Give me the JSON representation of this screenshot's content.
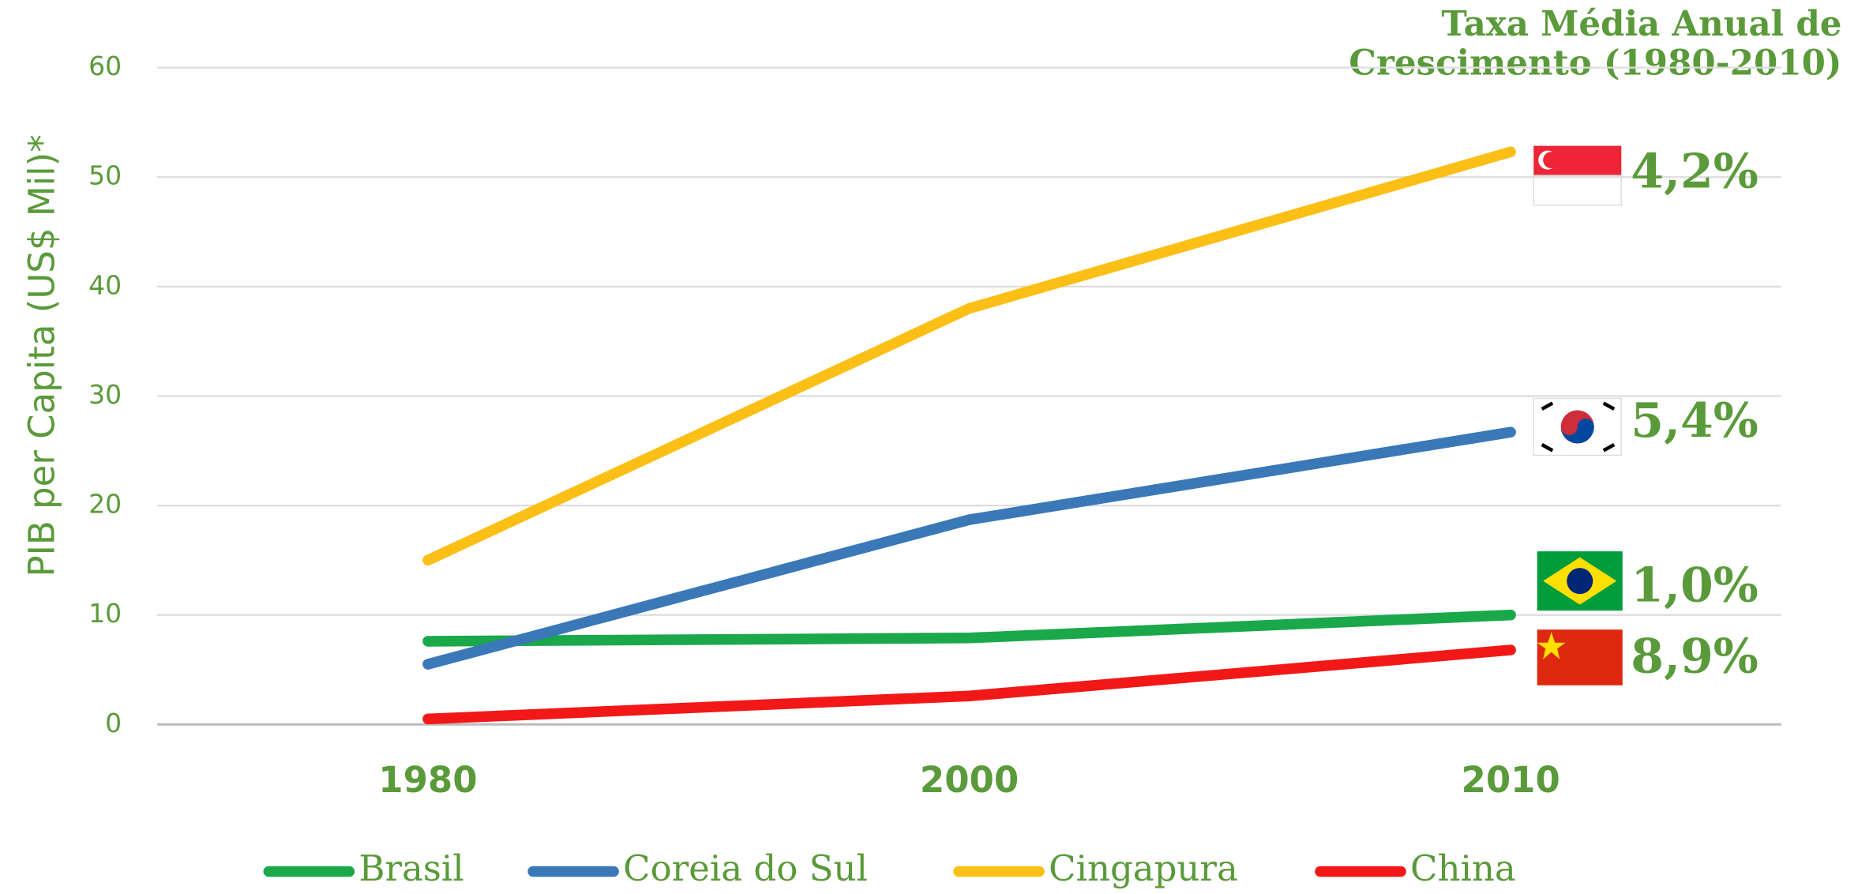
{
  "chart_data": {
    "type": "line",
    "annotation_title": "Taxa Média Anual de Crescimento (1980-2010)",
    "y_axis_label": "PIB per Capita (US$ Mil)*",
    "categories": [
      "1980",
      "2000",
      "2010"
    ],
    "series": [
      {
        "name": "Brasil",
        "color": "#1aa84a",
        "values": [
          7.6,
          7.9,
          10.0
        ],
        "growth_label": "1,0%"
      },
      {
        "name": "Coreia do Sul",
        "color": "#3a78b8",
        "values": [
          5.5,
          18.7,
          26.7
        ],
        "growth_label": "5,4%"
      },
      {
        "name": "Cingapura",
        "color": "#fbbf16",
        "values": [
          15.0,
          38.0,
          52.3
        ],
        "growth_label": "4,2%"
      },
      {
        "name": "China",
        "color": "#f21818",
        "values": [
          0.5,
          2.6,
          6.8
        ],
        "growth_label": "8,9%"
      }
    ],
    "ylim": [
      0,
      60
    ],
    "yticks": [
      0,
      10,
      20,
      30,
      40,
      50,
      60
    ],
    "grid": true,
    "legend": "bottom"
  }
}
